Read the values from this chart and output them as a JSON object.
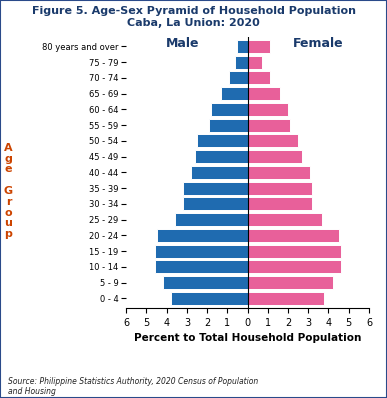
{
  "title_line1": "Figure 5. Age-Sex Pyramid of Household Population",
  "title_line2": "Caba, La Union: 2020",
  "age_groups": [
    "0 - 4",
    "5 - 9",
    "10 - 14",
    "15 - 19",
    "20 - 24",
    "25 - 29",
    "30 - 34",
    "35 - 39",
    "40 - 44",
    "45 - 49",
    "50 - 54",
    "55 - 59",
    "60 - 64",
    "65 - 69",
    "70 - 74",
    "75 - 79",
    "80 years and over"
  ],
  "male": [
    3.8,
    4.2,
    4.6,
    4.6,
    4.5,
    3.6,
    3.2,
    3.2,
    2.8,
    2.6,
    2.5,
    1.9,
    1.8,
    1.3,
    0.9,
    0.6,
    0.5
  ],
  "female": [
    3.8,
    4.2,
    4.6,
    4.6,
    4.5,
    3.7,
    3.2,
    3.2,
    3.1,
    2.7,
    2.5,
    2.1,
    2.0,
    1.6,
    1.1,
    0.7,
    1.1
  ],
  "male_color": "#1F6BB0",
  "female_color": "#E8609A",
  "bar_edgecolor": "#ffffff",
  "xlabel": "Percent to Total Household Population",
  "age_group_label": "A\ng\ne\n \nG\nr\no\nu\np",
  "xlim": 6,
  "source_text": "Source: Philippine Statistics Authority, 2020 Census of Population\nand Housing",
  "male_label": "Male",
  "female_label": "Female",
  "title_color": "#1a3a6b",
  "ylabel_color": "#cc4400",
  "background_color": "#ffffff",
  "border_color": "#2a4a8a"
}
